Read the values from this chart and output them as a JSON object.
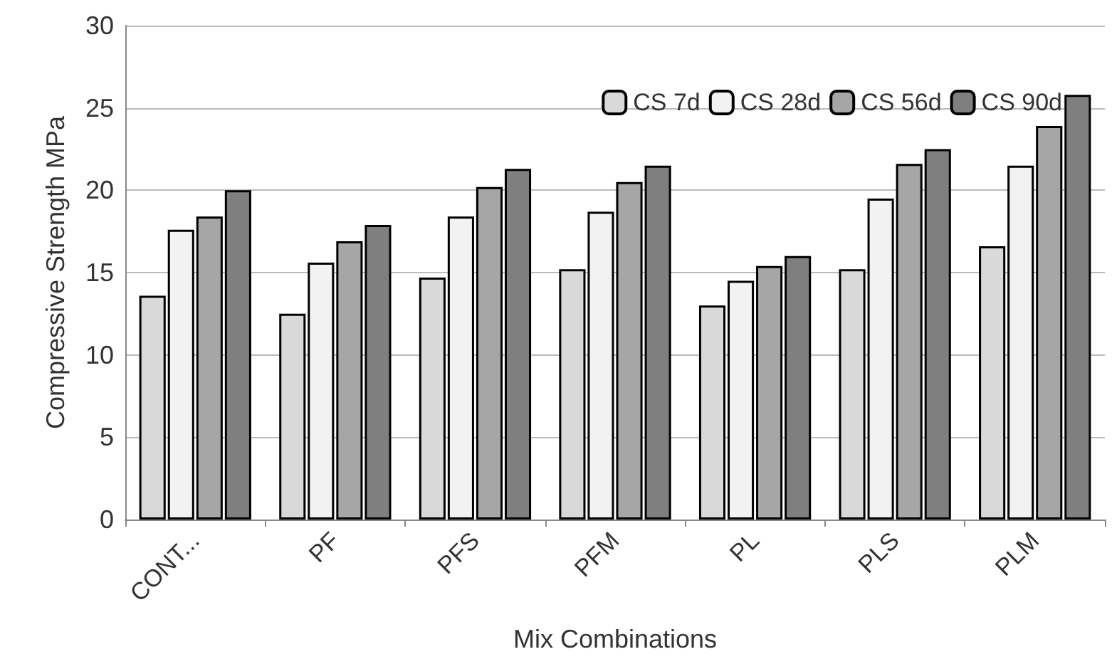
{
  "chart_data": {
    "type": "bar",
    "xlabel": "Mix Combinations",
    "ylabel": "Compressive Strength MPa",
    "categories": [
      "CONT...",
      "PF",
      "PFS",
      "PFM",
      "PL",
      "PLS",
      "PLM"
    ],
    "series": [
      {
        "name": "CS 7d",
        "color": "#d9d9d9",
        "values": [
          13.6,
          12.5,
          14.7,
          15.2,
          13.0,
          15.2,
          16.6
        ]
      },
      {
        "name": "CS 28d",
        "color": "#f2f2f2",
        "values": [
          17.6,
          15.6,
          18.4,
          18.7,
          14.5,
          19.5,
          21.5
        ]
      },
      {
        "name": "CS 56d",
        "color": "#a6a6a6",
        "values": [
          18.4,
          16.9,
          20.2,
          20.5,
          15.4,
          21.6,
          23.9
        ]
      },
      {
        "name": "CS 90d",
        "color": "#7f7f7f",
        "values": [
          20.0,
          17.9,
          21.3,
          21.5,
          16.0,
          22.5,
          25.8
        ]
      }
    ],
    "ylim": [
      0,
      30
    ],
    "yticks": [
      0,
      5,
      10,
      15,
      20,
      25,
      30
    ],
    "grid": "y",
    "legend": "top right"
  }
}
